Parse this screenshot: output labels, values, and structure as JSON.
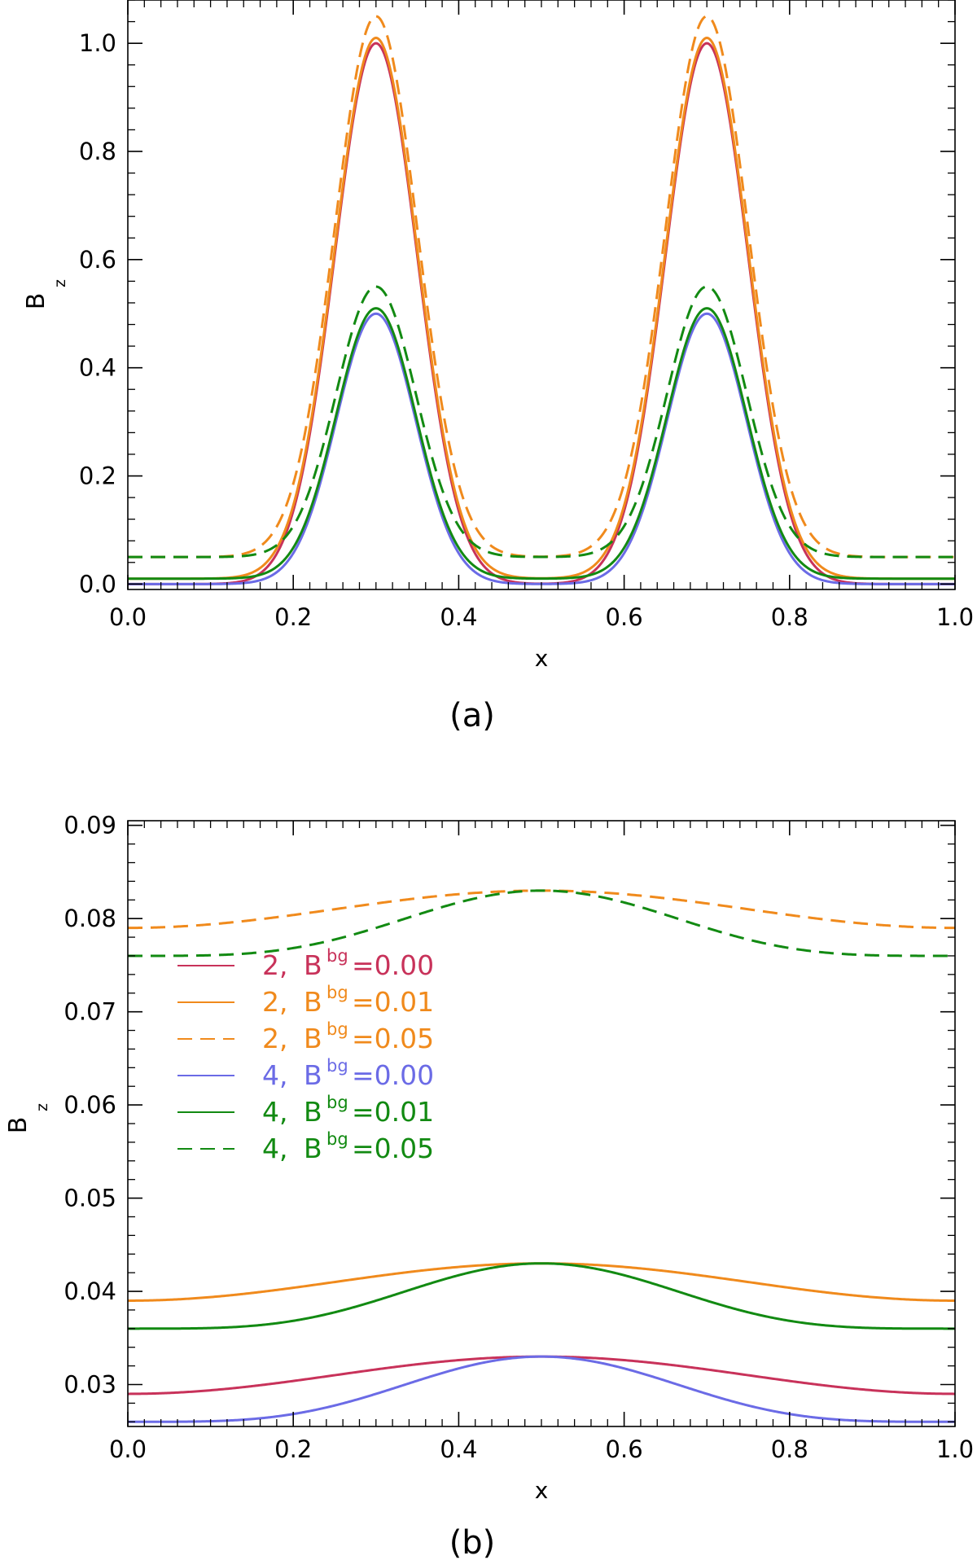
{
  "chart_data": [
    {
      "type": "line",
      "caption": "(a)",
      "xlabel": "x",
      "ylabel": "B",
      "ylabel_sub": "z",
      "xlim": [
        0.0,
        1.0
      ],
      "ylim": [
        -0.01,
        1.08
      ],
      "xticks": [
        "0.0",
        "0.2",
        "0.4",
        "0.6",
        "0.8",
        "1.0"
      ],
      "yticks": [
        "0.0",
        "0.2",
        "0.4",
        "0.6",
        "0.8",
        "1.0"
      ],
      "series": [
        {
          "name": "2, Bbg=0.00",
          "color": "#c8325a",
          "dash": false,
          "amp": 1.0,
          "bg": 0.0,
          "sigma": 0.05
        },
        {
          "name": "2, Bbg=0.01",
          "color": "#f08a1c",
          "dash": false,
          "amp": 1.0,
          "bg": 0.01,
          "sigma": 0.05
        },
        {
          "name": "2, Bbg=0.05",
          "color": "#f08a1c",
          "dash": true,
          "amp": 1.0,
          "bg": 0.05,
          "sigma": 0.05
        },
        {
          "name": "4, Bbg=0.00",
          "color": "#6b6be6",
          "dash": false,
          "amp": 0.5,
          "bg": 0.0,
          "sigma": 0.048
        },
        {
          "name": "4, Bbg=0.01",
          "color": "#128a12",
          "dash": false,
          "amp": 0.5,
          "bg": 0.01,
          "sigma": 0.048
        },
        {
          "name": "4, Bbg=0.05",
          "color": "#128a12",
          "dash": true,
          "amp": 0.5,
          "bg": 0.05,
          "sigma": 0.048
        }
      ],
      "peaks_x": [
        0.3,
        0.7
      ]
    },
    {
      "type": "line",
      "caption": "(b)",
      "xlabel": "x",
      "ylabel": "B",
      "ylabel_sub": "z",
      "xlim": [
        0.0,
        1.0
      ],
      "ylim": [
        0.0255,
        0.0905
      ],
      "xticks": [
        "0.0",
        "0.2",
        "0.4",
        "0.6",
        "0.8",
        "1.0"
      ],
      "yticks": [
        "0.03",
        "0.04",
        "0.05",
        "0.06",
        "0.07",
        "0.08",
        "0.09"
      ],
      "series": [
        {
          "name": "2, Bbg=0.00",
          "color": "#c8325a",
          "dash": false,
          "edge": 0.029,
          "center": 0.033,
          "shape": "cos"
        },
        {
          "name": "2, Bbg=0.01",
          "color": "#f08a1c",
          "dash": false,
          "edge": 0.039,
          "center": 0.043,
          "shape": "cos"
        },
        {
          "name": "2, Bbg=0.05",
          "color": "#f08a1c",
          "dash": true,
          "edge": 0.079,
          "center": 0.083,
          "shape": "cos"
        },
        {
          "name": "4, Bbg=0.00",
          "color": "#6b6be6",
          "dash": false,
          "edge": 0.026,
          "center": 0.033,
          "shape": "cos2"
        },
        {
          "name": "4, Bbg=0.01",
          "color": "#128a12",
          "dash": false,
          "edge": 0.036,
          "center": 0.043,
          "shape": "cos2"
        },
        {
          "name": "4, Bbg=0.05",
          "color": "#128a12",
          "dash": true,
          "edge": 0.076,
          "center": 0.083,
          "shape": "cos2"
        }
      ],
      "legend": {
        "placement": "left-middle",
        "entries": [
          {
            "num": "2,",
            "b": "B",
            "sub": "bg",
            "val": "=0.00",
            "color": "#c8325a",
            "dash": false
          },
          {
            "num": "2,",
            "b": "B",
            "sub": "bg",
            "val": "=0.01",
            "color": "#f08a1c",
            "dash": false
          },
          {
            "num": "2,",
            "b": "B",
            "sub": "bg",
            "val": "=0.05",
            "color": "#f08a1c",
            "dash": true
          },
          {
            "num": "4,",
            "b": "B",
            "sub": "bg",
            "val": "=0.00",
            "color": "#6b6be6",
            "dash": false
          },
          {
            "num": "4,",
            "b": "B",
            "sub": "bg",
            "val": "=0.01",
            "color": "#128a12",
            "dash": false
          },
          {
            "num": "4,",
            "b": "B",
            "sub": "bg",
            "val": "=0.05",
            "color": "#128a12",
            "dash": true
          }
        ]
      }
    }
  ]
}
